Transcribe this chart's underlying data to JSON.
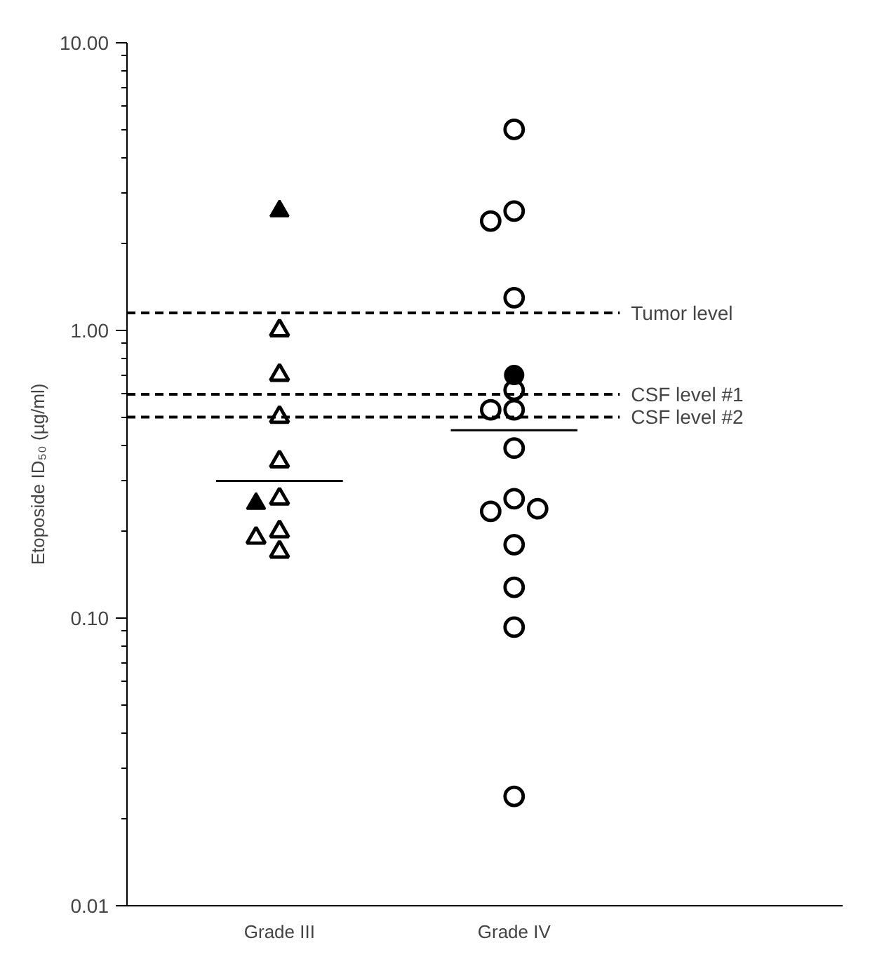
{
  "chart_data": {
    "type": "scatter",
    "ylabel": "Etoposide ID₅₀ (µg/ml)",
    "categories": [
      "Grade III",
      "Grade IV"
    ],
    "log": "y",
    "ylim": [
      0.01,
      10
    ],
    "yticks": [
      {
        "value": 0.01,
        "label": "0.01"
      },
      {
        "value": 0.1,
        "label": "0.10"
      },
      {
        "value": 1,
        "label": "1.00"
      },
      {
        "value": 10,
        "label": "10.00"
      }
    ],
    "grid": false,
    "series": [
      {
        "color": "#000000",
        "marker": "triangle_open",
        "x": [
          "Grade III",
          "Grade III",
          "Grade III",
          "Grade III",
          "Grade III",
          "Grade III",
          "Grade III",
          "Grade III"
        ],
        "values": [
          1.0,
          0.7,
          0.5,
          0.35,
          0.26,
          0.2,
          0.19,
          0.17
        ]
      },
      {
        "color": "#000000",
        "marker": "triangle",
        "x": [
          "Grade III",
          "Grade III"
        ],
        "values": [
          2.6,
          0.25
        ]
      },
      {
        "color": "#000000",
        "marker": "circle_open",
        "x": [
          "Grade IV",
          "Grade IV",
          "Grade IV",
          "Grade IV",
          "Grade IV",
          "Grade IV",
          "Grade IV",
          "Grade IV",
          "Grade IV",
          "Grade IV",
          "Grade IV",
          "Grade IV",
          "Grade IV",
          "Grade IV",
          "Grade IV"
        ],
        "values": [
          5.0,
          2.6,
          2.4,
          1.3,
          0.62,
          0.53,
          0.53,
          0.39,
          0.26,
          0.235,
          0.24,
          0.18,
          0.128,
          0.093,
          0.024
        ]
      },
      {
        "color": "#000000",
        "marker": "circle",
        "x": [
          "Grade IV"
        ],
        "values": [
          0.7
        ]
      },
      {
        "type": "box",
        "color": "#000000",
        "boxes": [
          {
            "low": 0.3,
            "q1": 0.3,
            "median": 0.3,
            "q3": 0.3,
            "high": 0.3
          },
          {
            "low": 0.45,
            "q1": 0.45,
            "median": 0.45,
            "q3": 0.45,
            "high": 0.45
          }
        ]
      }
    ],
    "ref_lines": [
      {
        "axis": "y",
        "value": 1.15,
        "label": "Tumor level",
        "line_style": "dashed",
        "color": "#000000"
      },
      {
        "axis": "y",
        "value": 0.6,
        "label": "CSF level #1",
        "line_style": "dashed",
        "color": "#000000"
      },
      {
        "axis": "y",
        "value": 0.5,
        "label": "CSF level #2",
        "line_style": "dashed",
        "color": "#000000"
      }
    ]
  }
}
